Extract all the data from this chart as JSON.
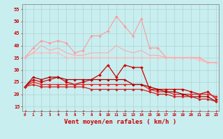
{
  "background_color": "#c8eef0",
  "grid_color": "#aacccc",
  "xlabel": "Vent moyen/en rafales ( km/h )",
  "xlabel_color": "#cc0000",
  "xlabel_fontsize": 6.5,
  "xtick_labels": [
    "0",
    "1",
    "2",
    "3",
    "4",
    "5",
    "6",
    "7",
    "8",
    "9",
    "10",
    "11",
    "12",
    "13",
    "14",
    "15",
    "16",
    "17",
    "18",
    "19",
    "20",
    "21",
    "22",
    "23"
  ],
  "ytick_labels": [
    15,
    20,
    25,
    30,
    35,
    40,
    45,
    50,
    55
  ],
  "ylim": [
    13,
    57
  ],
  "xlim": [
    -0.3,
    23.3
  ],
  "series": [
    {
      "name": "pink_upper",
      "color": "#ff9999",
      "linewidth": 0.8,
      "linestyle": "-",
      "marker": "D",
      "markersize": 1.8,
      "y": [
        35,
        39,
        42,
        41,
        42,
        41,
        37,
        38,
        44,
        44,
        46,
        52,
        48,
        44,
        51,
        39,
        39,
        35,
        35,
        35,
        35,
        35,
        33,
        33
      ]
    },
    {
      "name": "pink_lower",
      "color": "#ffbbbb",
      "linewidth": 0.8,
      "linestyle": "-",
      "marker": "D",
      "markersize": 1.8,
      "y": [
        35,
        37,
        37,
        37,
        37,
        35,
        35,
        35,
        35,
        35,
        35,
        35,
        35,
        35,
        35,
        35,
        35,
        35,
        35,
        35,
        35,
        34,
        33,
        33
      ]
    },
    {
      "name": "pink_band_top",
      "color": "#ffaaaa",
      "linewidth": 0.8,
      "linestyle": "-",
      "marker": null,
      "markersize": 0,
      "y": [
        35,
        37,
        40,
        38,
        39,
        37,
        36,
        36,
        37,
        37,
        37,
        40,
        38,
        37,
        38,
        36,
        36,
        35,
        35,
        35,
        35,
        35,
        33,
        33
      ]
    },
    {
      "name": "dark_red_wavy",
      "color": "#cc0000",
      "linewidth": 0.9,
      "linestyle": "-",
      "marker": "D",
      "markersize": 2.0,
      "y": [
        23,
        26,
        25,
        26,
        27,
        25,
        24,
        25,
        26,
        28,
        32,
        27,
        32,
        31,
        31,
        22,
        22,
        22,
        22,
        22,
        21,
        20,
        21,
        18
      ]
    },
    {
      "name": "dark_red_flat1",
      "color": "#ee2222",
      "linewidth": 0.9,
      "linestyle": "-",
      "marker": "D",
      "markersize": 1.8,
      "y": [
        23,
        25,
        24,
        24,
        24,
        24,
        24,
        24,
        24,
        24,
        24,
        24,
        24,
        24,
        24,
        22,
        21,
        21,
        20,
        20,
        20,
        20,
        20,
        19
      ]
    },
    {
      "name": "dark_red_flat2",
      "color": "#aa0000",
      "linewidth": 0.9,
      "linestyle": "-",
      "marker": "D",
      "markersize": 1.8,
      "y": [
        23,
        27,
        26,
        27,
        27,
        26,
        26,
        26,
        26,
        26,
        26,
        26,
        26,
        24,
        24,
        23,
        22,
        21,
        21,
        20,
        19,
        19,
        19,
        17
      ]
    },
    {
      "name": "red_declining",
      "color": "#cc2222",
      "linewidth": 0.9,
      "linestyle": "-",
      "marker": "D",
      "markersize": 1.8,
      "y": [
        23,
        24,
        23,
        23,
        23,
        23,
        23,
        23,
        22,
        22,
        22,
        22,
        22,
        22,
        22,
        21,
        20,
        20,
        19,
        19,
        19,
        18,
        18,
        17
      ]
    },
    {
      "name": "dashed_bottom",
      "color": "#dd0000",
      "linewidth": 0.7,
      "linestyle": "--",
      "marker": "<",
      "markersize": 2.0,
      "y": [
        13,
        13,
        13,
        13,
        13,
        13,
        13,
        13,
        13,
        13,
        13,
        13,
        13,
        13,
        13,
        13,
        13,
        13,
        13,
        13,
        13,
        13,
        13,
        13
      ]
    }
  ]
}
